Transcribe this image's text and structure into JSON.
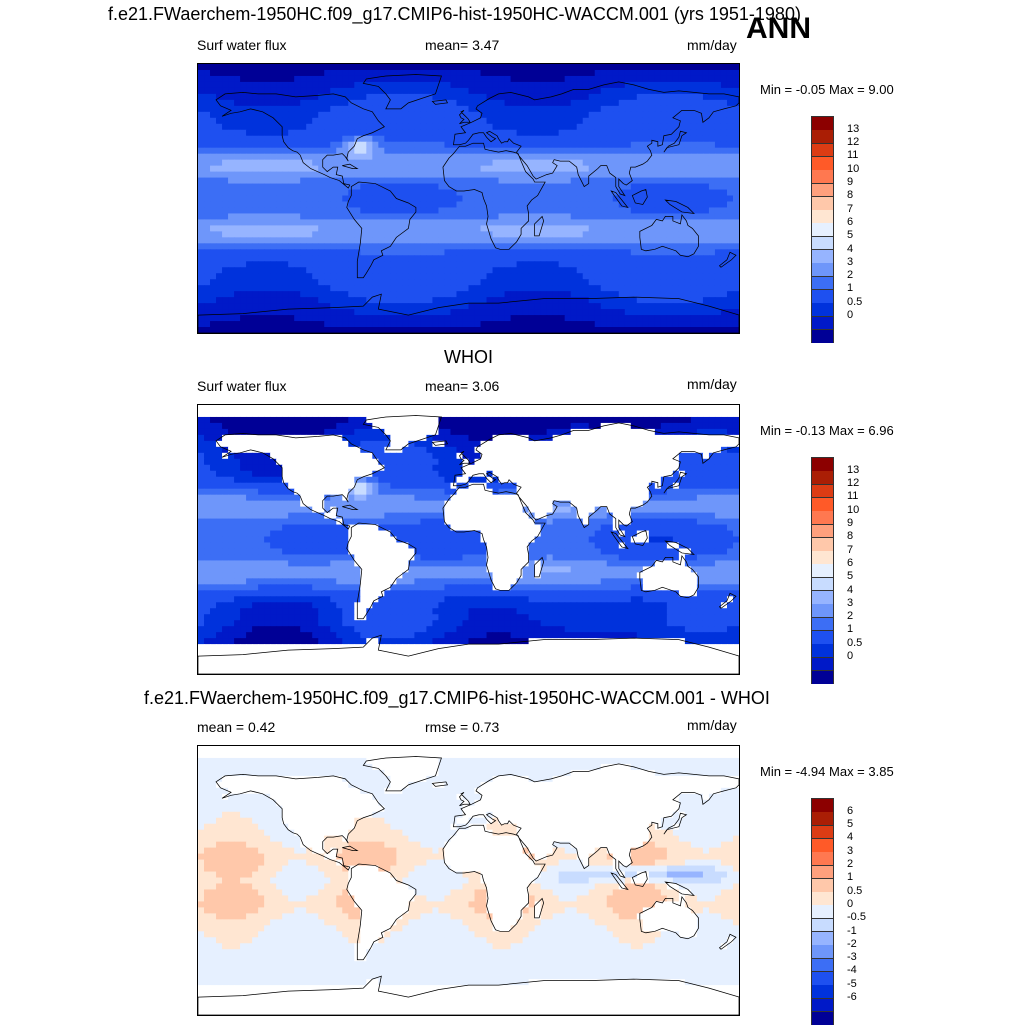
{
  "header": {
    "title": "f.e21.FWaerchem-1950HC.f09_g17.CMIP6-hist-1950HC-WACCM.001 (yrs 1951-1980)",
    "season": "ANN"
  },
  "panels": [
    {
      "id": "model",
      "heading": "",
      "left_label": "Surf water flux",
      "mid_label": "mean=   3.47",
      "units": "mm/day",
      "minmax": "Min =  -0.05 Max =   9.00",
      "field": {
        "type": "full",
        "mean": 3.47,
        "min": -0.05,
        "max": 9.0
      },
      "colorbar": {
        "ticks": [
          "13",
          "12",
          "11",
          "10",
          "9",
          "8",
          "7",
          "6",
          "5",
          "4",
          "3",
          "2",
          "1",
          "0.5",
          "0"
        ],
        "colors": [
          "#000096",
          "#0019c8",
          "#0032dc",
          "#1e50f0",
          "#3c6ef5",
          "#6e96fa",
          "#96b4ff",
          "#c8dcff",
          "#e6f0ff",
          "#ffe6d2",
          "#ffc8aa",
          "#ffa07d",
          "#ff7850",
          "#ff5a28",
          "#dc3c14",
          "#aa1e05",
          "#8c0000"
        ]
      }
    },
    {
      "id": "obs",
      "heading": "WHOI",
      "left_label": "Surf water flux",
      "mid_label": "mean=   3.06",
      "units": "mm/day",
      "minmax": "Min =  -0.13 Max =   6.96",
      "field": {
        "type": "ocean",
        "mean": 3.06,
        "min": -0.13,
        "max": 6.96
      },
      "colorbar": {
        "ticks": [
          "13",
          "12",
          "11",
          "10",
          "9",
          "8",
          "7",
          "6",
          "5",
          "4",
          "3",
          "2",
          "1",
          "0.5",
          "0"
        ],
        "colors": [
          "#000096",
          "#0019c8",
          "#0032dc",
          "#1e50f0",
          "#3c6ef5",
          "#6e96fa",
          "#96b4ff",
          "#c8dcff",
          "#e6f0ff",
          "#ffe6d2",
          "#ffc8aa",
          "#ffa07d",
          "#ff7850",
          "#ff5a28",
          "#dc3c14",
          "#aa1e05",
          "#8c0000"
        ]
      }
    },
    {
      "id": "diff",
      "heading": "f.e21.FWaerchem-1950HC.f09_g17.CMIP6-hist-1950HC-WACCM.001 - WHOI",
      "left_label": "mean =   0.42",
      "mid_label": "rmse =   0.73",
      "units": "mm/day",
      "minmax": "Min =  -4.94 Max =   3.85",
      "field": {
        "type": "diff",
        "mean": 0.42,
        "rmse": 0.73,
        "min": -4.94,
        "max": 3.85
      },
      "colorbar": {
        "ticks": [
          "6",
          "5",
          "4",
          "3",
          "2",
          "1",
          "0.5",
          "0",
          "-0.5",
          "-1",
          "-2",
          "-3",
          "-4",
          "-5",
          "-6"
        ],
        "colors": [
          "#000096",
          "#0019c8",
          "#0032dc",
          "#1e50f0",
          "#3c6ef5",
          "#6e96fa",
          "#96b4ff",
          "#c8dcff",
          "#e6f0ff",
          "#ffe6d2",
          "#ffc8aa",
          "#ffa07d",
          "#ff7850",
          "#ff5a28",
          "#dc3c14",
          "#aa1e05",
          "#8c0000"
        ]
      }
    }
  ]
}
